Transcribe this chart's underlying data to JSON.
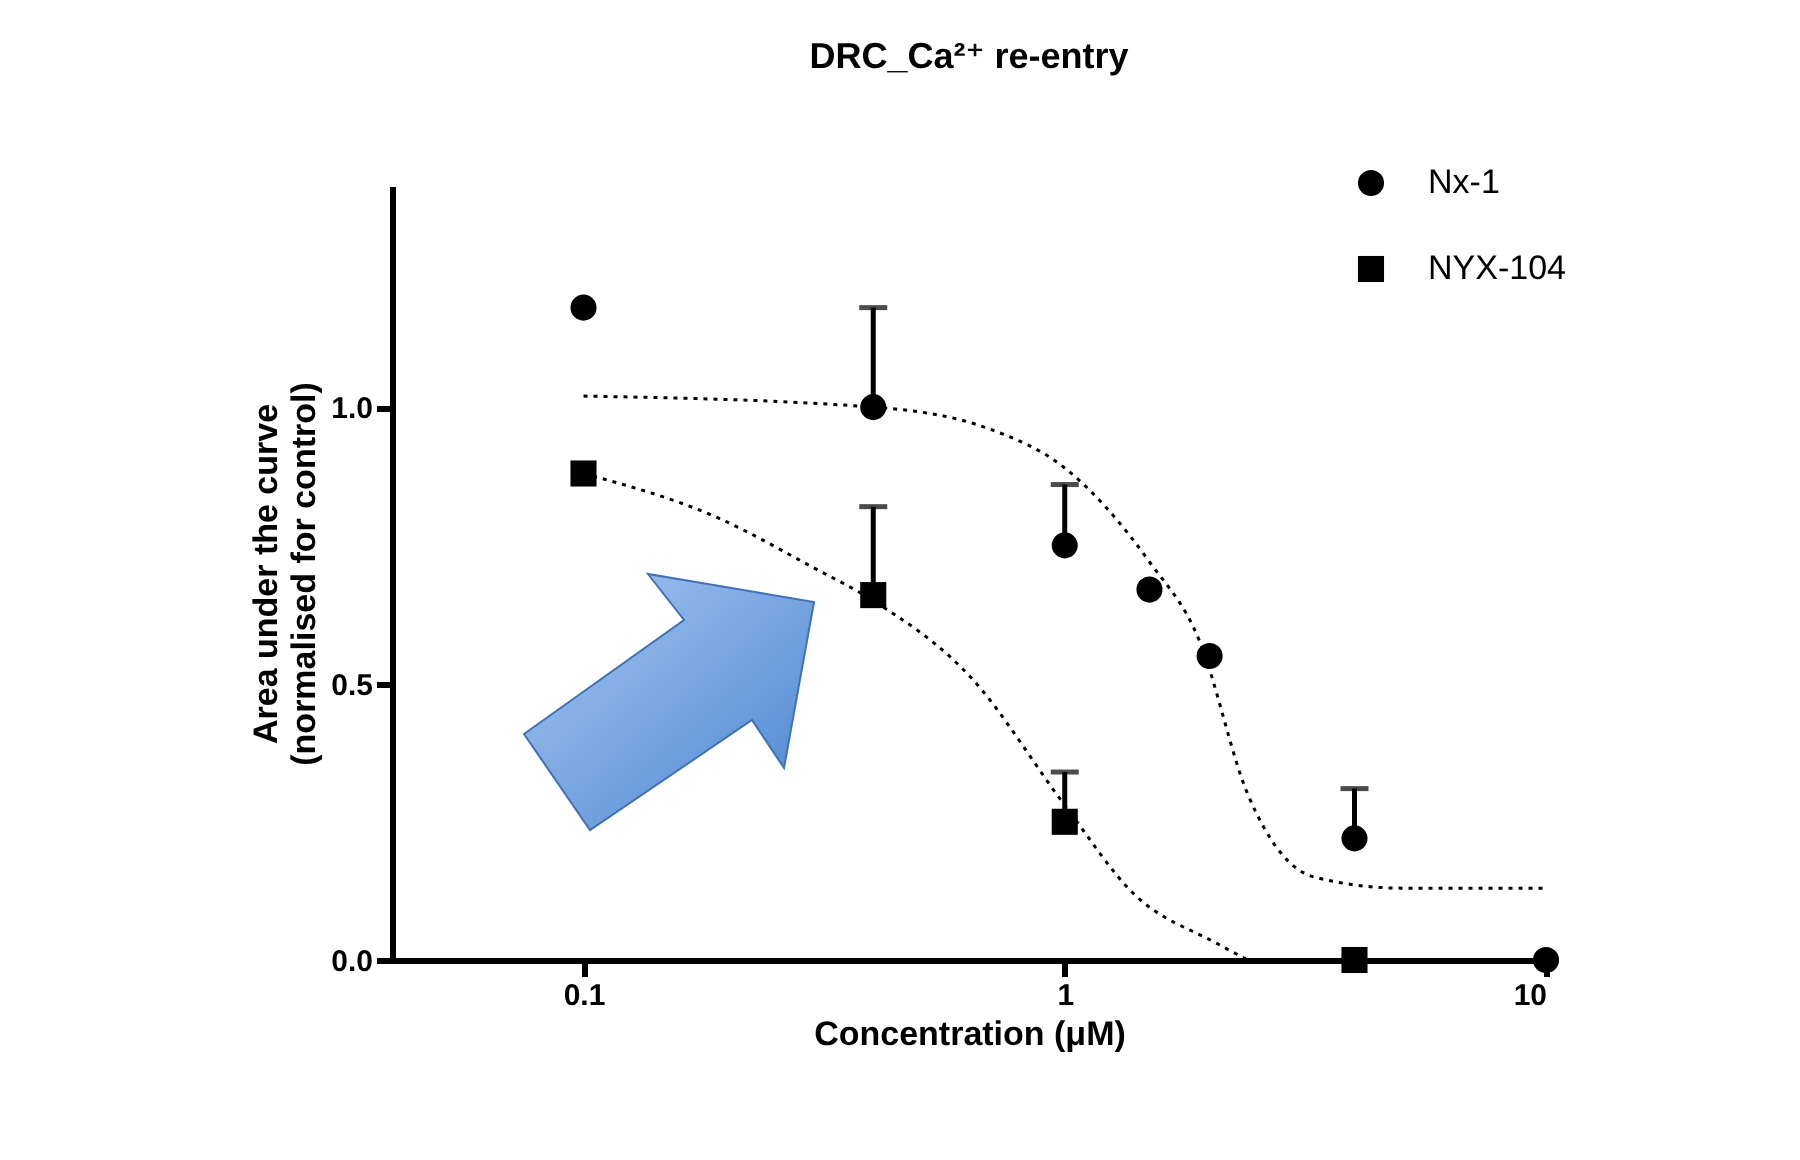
{
  "chart_data": {
    "type": "scatter",
    "title": "DRC_Ca²⁺ re-entry",
    "xlabel": "Concentration (μM)",
    "ylabel": "Area under the curve\n(normalised for control)",
    "log": "x",
    "xlim": [
      0.04,
      10
    ],
    "xticks": [
      0.1,
      1,
      10
    ],
    "ylim": [
      0,
      1.4
    ],
    "yticks": [
      {
        "value": 0,
        "label": "0.0"
      },
      {
        "value": 0.5,
        "label": "0.5"
      },
      {
        "value": 1,
        "label": "1.0"
      }
    ],
    "legend": "top right",
    "series": [
      {
        "name": "Nx-1",
        "marker": "circle",
        "color": "#000000",
        "x": [
          0.1,
          0.4,
          1,
          1.5,
          2,
          4,
          10
        ],
        "values": [
          1.18,
          1.0,
          0.75,
          0.67,
          0.55,
          0.22,
          0
        ],
        "errors": [
          null,
          [
            1.0,
            1.18
          ],
          [
            0.75,
            0.86
          ],
          null,
          null,
          [
            0.22,
            0.31
          ],
          null
        ]
      },
      {
        "name": "NYX-104",
        "marker": "square",
        "color": "#000000",
        "x": [
          0.1,
          0.4,
          1,
          4
        ],
        "values": [
          0.88,
          0.66,
          0.25,
          0
        ],
        "errors": [
          null,
          [
            0.66,
            0.82
          ],
          [
            0.25,
            0.34
          ],
          null
        ]
      },
      {
        "type": "line",
        "line_style": "dotted",
        "color": "#000000",
        "x": [
          0.1,
          0.4,
          0.7,
          1,
          1.5,
          1.9,
          2.4,
          3.3,
          5,
          10
        ],
        "values": [
          1.02,
          1.0,
          0.96,
          0.89,
          0.72,
          0.58,
          0.3,
          0.15,
          0.13,
          0.13
        ]
      },
      {
        "type": "line",
        "line_style": "dotted",
        "color": "#000000",
        "x": [
          0.1,
          0.19,
          0.3,
          0.4,
          0.64,
          1,
          1.39,
          2.07,
          2.4
        ],
        "values": [
          0.88,
          0.8,
          0.71,
          0.65,
          0.51,
          0.28,
          0.12,
          0.03,
          0
        ]
      }
    ]
  }
}
